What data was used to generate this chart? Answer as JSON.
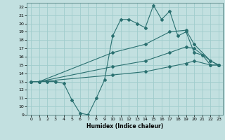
{
  "xlabel": "Humidex (Indice chaleur)",
  "xlim": [
    -0.5,
    23.5
  ],
  "ylim": [
    9,
    22.5
  ],
  "yticks": [
    9,
    10,
    11,
    12,
    13,
    14,
    15,
    16,
    17,
    18,
    19,
    20,
    21,
    22
  ],
  "xticks": [
    0,
    1,
    2,
    3,
    4,
    5,
    6,
    7,
    8,
    9,
    10,
    11,
    12,
    13,
    14,
    15,
    16,
    17,
    18,
    19,
    20,
    21,
    22,
    23
  ],
  "bg_color": "#c2e0e0",
  "grid_color": "#a0cccc",
  "line_color": "#2a7070",
  "lines": [
    {
      "x": [
        0,
        1,
        2,
        3,
        4,
        5,
        6,
        7,
        8,
        9,
        10,
        11,
        12,
        13,
        14,
        15,
        16,
        17,
        18,
        19,
        20,
        21,
        22,
        23
      ],
      "y": [
        13,
        13,
        13,
        13,
        12.8,
        10.8,
        9.2,
        9.0,
        11.0,
        13.2,
        18.5,
        20.5,
        20.5,
        20.0,
        19.5,
        22.2,
        20.5,
        21.5,
        18.5,
        19.0,
        16.5,
        16.2,
        15.0,
        15.0
      ]
    },
    {
      "x": [
        0,
        1,
        10,
        14,
        17,
        19,
        20,
        22,
        23
      ],
      "y": [
        13,
        13,
        16.5,
        17.5,
        19.0,
        19.2,
        17.5,
        15.5,
        15.0
      ]
    },
    {
      "x": [
        0,
        1,
        10,
        14,
        17,
        19,
        20,
        22,
        23
      ],
      "y": [
        13,
        13,
        14.8,
        15.5,
        16.5,
        17.2,
        17.0,
        15.5,
        15.0
      ]
    },
    {
      "x": [
        0,
        1,
        10,
        14,
        17,
        19,
        20,
        22,
        23
      ],
      "y": [
        13,
        13,
        13.8,
        14.2,
        14.8,
        15.2,
        15.5,
        15.0,
        15.0
      ]
    }
  ]
}
